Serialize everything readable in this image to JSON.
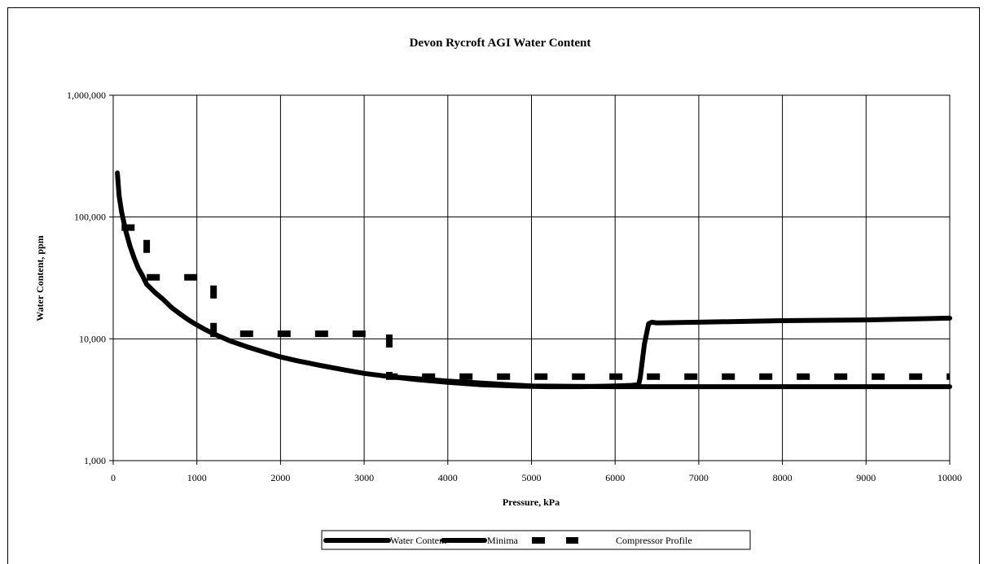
{
  "chart_data": {
    "type": "line",
    "title": "Devon Rycroft AGI Water Content",
    "xlabel": "Pressure, kPa",
    "ylabel": "Water Content, ppm",
    "xlim": [
      0,
      10000
    ],
    "ylim": [
      1000,
      1000000
    ],
    "y_scale": "log",
    "grid": true,
    "legend_position": "bottom",
    "x_ticks": [
      "0",
      "1000",
      "2000",
      "3000",
      "4000",
      "5000",
      "6000",
      "7000",
      "8000",
      "9000",
      "10000"
    ],
    "y_ticks": [
      "1,000",
      "10,000",
      "100,000",
      "1,000,000"
    ],
    "series": [
      {
        "name": "Water Content",
        "style": "solid",
        "x": [
          50,
          70,
          100,
          150,
          200,
          250,
          300,
          350,
          400,
          500,
          600,
          700,
          800,
          900,
          1000,
          1100,
          1200,
          1400,
          1600,
          1800,
          2000,
          2200,
          2500,
          2800,
          3000,
          3300,
          3600,
          4000,
          4400,
          4800,
          5200,
          5600,
          6000,
          6200,
          6280,
          6300,
          6350,
          6400,
          6440,
          6500,
          7000,
          8000,
          9000,
          10000
        ],
        "y": [
          230000,
          150000,
          110000,
          77000,
          58000,
          46000,
          38000,
          33000,
          28000,
          24000,
          21000,
          18000,
          16000,
          14300,
          13000,
          11900,
          11000,
          9600,
          8600,
          7800,
          7100,
          6600,
          6000,
          5500,
          5200,
          4900,
          4650,
          4400,
          4200,
          4100,
          4050,
          4050,
          4100,
          4150,
          4200,
          4800,
          9000,
          13300,
          13700,
          13500,
          13700,
          14100,
          14300,
          14800
        ]
      },
      {
        "name": "Minima",
        "style": "solid",
        "x": [
          3300,
          4000,
          5000,
          6000,
          7000,
          8000,
          9000,
          10000
        ],
        "y": [
          4900,
          4500,
          4100,
          4050,
          4050,
          4050,
          4050,
          4050
        ]
      },
      {
        "name": "Compressor Profile",
        "style": "dashed",
        "x": [
          100,
          400,
          400,
          400,
          1200,
          1200,
          1200,
          3300,
          3300,
          3300,
          10000
        ],
        "y": [
          82000,
          82000,
          60000,
          32000,
          32000,
          23000,
          11000,
          11000,
          7500,
          4900,
          4900
        ]
      }
    ]
  }
}
